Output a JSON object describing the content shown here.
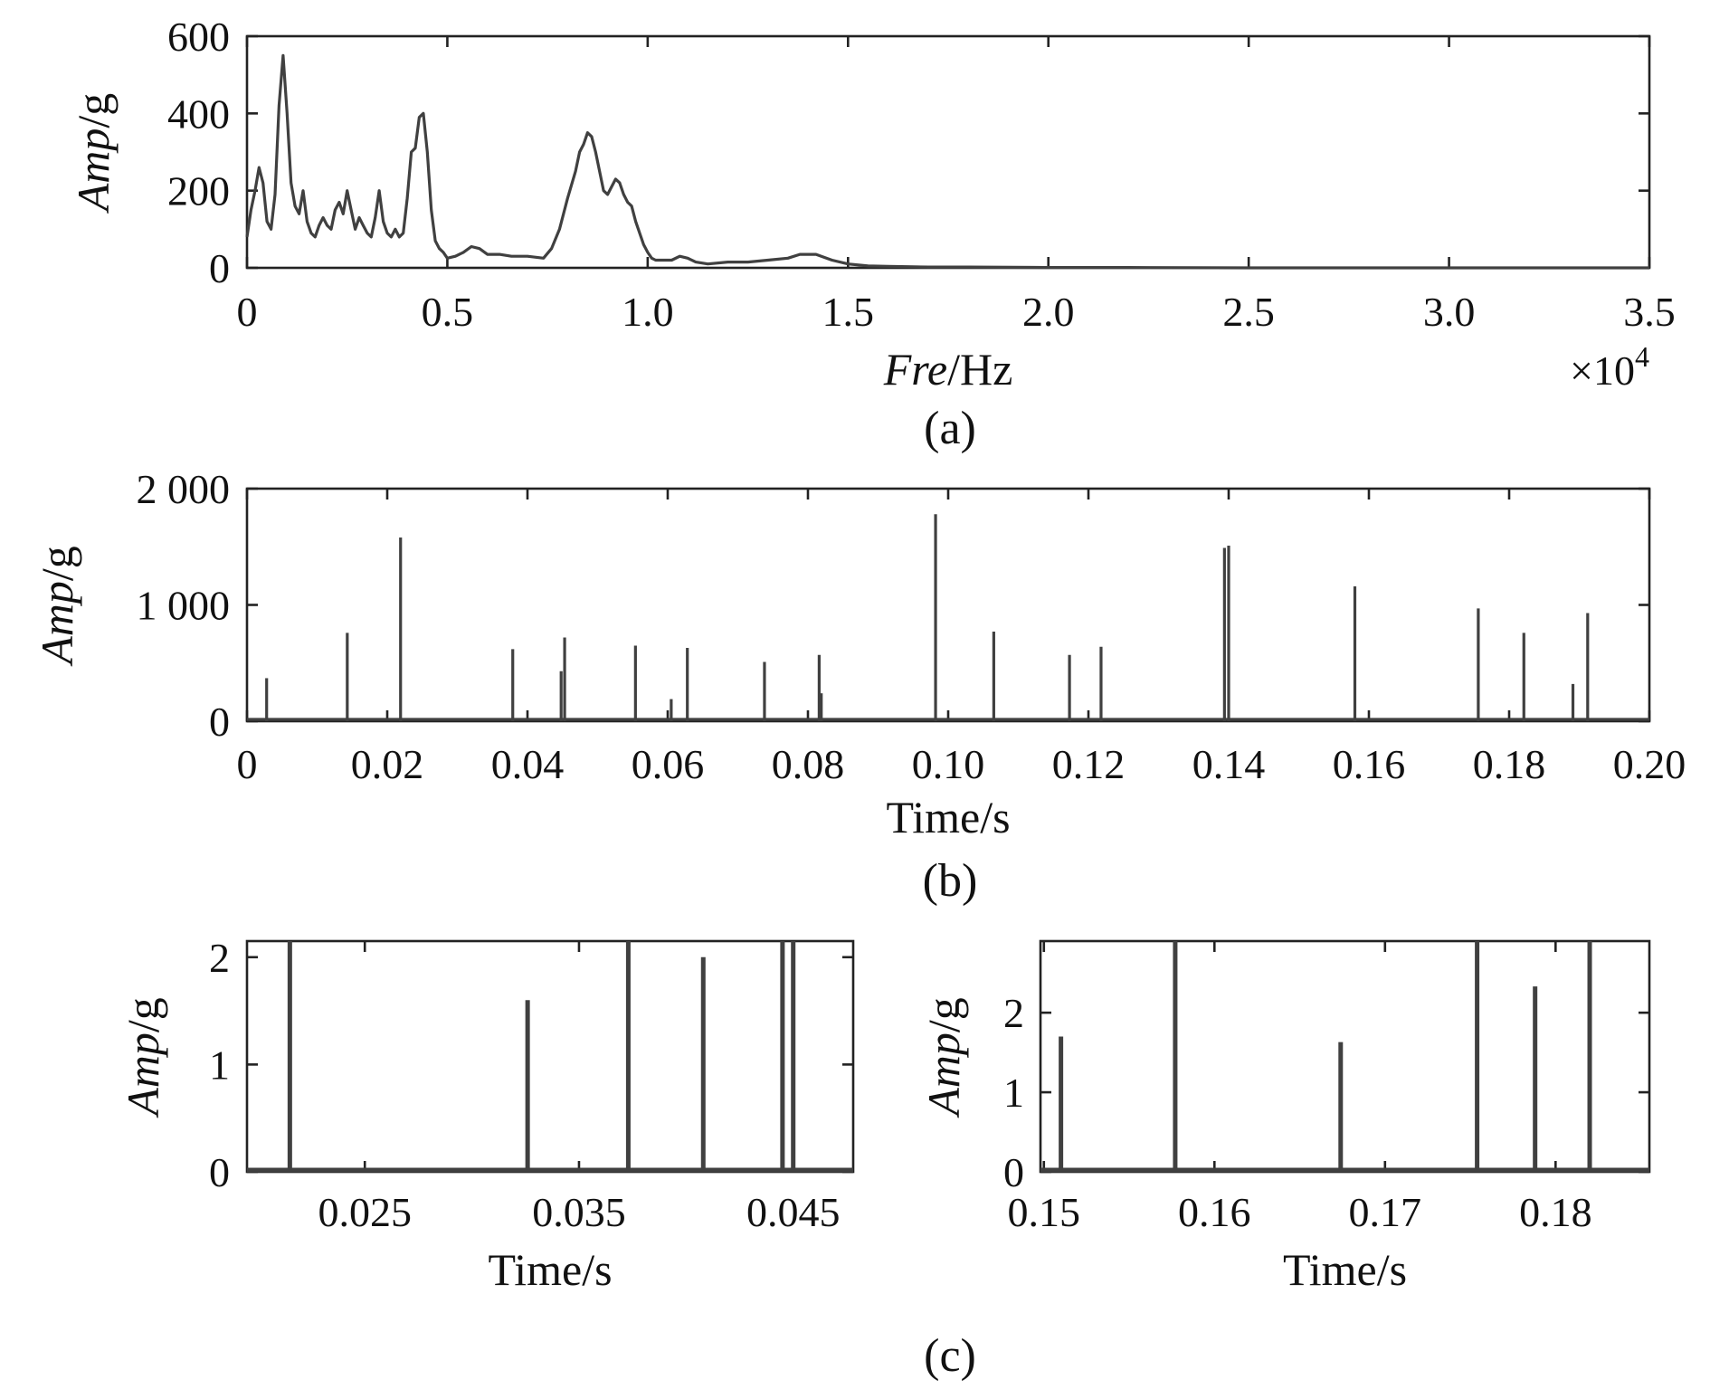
{
  "chart_data": [
    {
      "id": "a",
      "type": "line",
      "caption": "(a)",
      "xlabel_italic": "Fre",
      "xlabel_rest": "/Hz",
      "ylabel_italic": "Amp",
      "ylabel_rest": "/g",
      "xlim": [
        0,
        35000
      ],
      "ylim": [
        0,
        600
      ],
      "x_tick_values": [
        0,
        5000,
        10000,
        15000,
        20000,
        25000,
        30000,
        35000
      ],
      "x_tick_labels": [
        "0",
        "0.5",
        "1.0",
        "1.5",
        "2.0",
        "2.5",
        "3.0",
        "3.5"
      ],
      "x_multiplier": {
        "base": "×10",
        "exponent": "4"
      },
      "y_tick_values": [
        0,
        200,
        400,
        600
      ],
      "y_tick_labels": [
        "0",
        "200",
        "400",
        "600"
      ],
      "x": [
        0,
        100,
        200,
        300,
        400,
        500,
        600,
        700,
        800,
        900,
        1000,
        1100,
        1200,
        1300,
        1400,
        1500,
        1600,
        1700,
        1800,
        1900,
        2000,
        2100,
        2200,
        2300,
        2400,
        2500,
        2600,
        2700,
        2800,
        2900,
        3000,
        3100,
        3200,
        3300,
        3400,
        3500,
        3600,
        3700,
        3800,
        3900,
        4000,
        4100,
        4200,
        4300,
        4400,
        4500,
        4600,
        4700,
        4800,
        4900,
        5000,
        5200,
        5400,
        5600,
        5800,
        6000,
        6300,
        6600,
        7000,
        7400,
        7600,
        7800,
        8000,
        8200,
        8300,
        8400,
        8500,
        8600,
        8700,
        8800,
        8900,
        9000,
        9100,
        9200,
        9300,
        9400,
        9500,
        9600,
        9700,
        9800,
        9900,
        10000,
        10100,
        10200,
        10400,
        10600,
        10800,
        11000,
        11200,
        11500,
        12000,
        12500,
        13000,
        13500,
        13800,
        14200,
        14600,
        15000,
        15500,
        16000,
        16500,
        17000,
        18000,
        20000,
        22000,
        25000,
        28000,
        30000,
        32000,
        35000
      ],
      "y": [
        80,
        150,
        200,
        260,
        220,
        120,
        100,
        190,
        420,
        550,
        400,
        220,
        160,
        140,
        200,
        120,
        90,
        80,
        110,
        130,
        110,
        100,
        150,
        170,
        140,
        200,
        150,
        100,
        130,
        110,
        90,
        80,
        130,
        200,
        120,
        90,
        80,
        100,
        80,
        90,
        180,
        300,
        310,
        390,
        400,
        300,
        150,
        70,
        50,
        40,
        25,
        30,
        40,
        55,
        50,
        35,
        35,
        30,
        30,
        25,
        50,
        100,
        180,
        250,
        300,
        320,
        350,
        340,
        300,
        250,
        200,
        190,
        210,
        230,
        220,
        190,
        170,
        160,
        120,
        90,
        60,
        40,
        25,
        20,
        20,
        20,
        30,
        25,
        15,
        10,
        15,
        15,
        20,
        25,
        35,
        35,
        20,
        10,
        5,
        4,
        3,
        2,
        2,
        1,
        1,
        0,
        0,
        0,
        0,
        0
      ]
    },
    {
      "id": "b",
      "type": "line",
      "caption": "(b)",
      "xlabel": "Time/s",
      "ylabel_italic": "Amp",
      "ylabel_rest": "/g",
      "xlim": [
        0,
        0.2
      ],
      "ylim": [
        0,
        2000
      ],
      "x_tick_values": [
        0,
        0.02,
        0.04,
        0.06,
        0.08,
        0.1,
        0.12,
        0.14,
        0.16,
        0.18,
        0.2
      ],
      "x_tick_labels": [
        "0",
        "0.02",
        "0.04",
        "0.06",
        "0.08",
        "0.10",
        "0.12",
        "0.14",
        "0.16",
        "0.18",
        "0.20"
      ],
      "y_tick_values": [
        0,
        1000,
        2000
      ],
      "y_tick_labels": [
        "0",
        "1 000",
        "2 000"
      ],
      "spikes_x": [
        0.0028,
        0.0143,
        0.0219,
        0.0379,
        0.0448,
        0.0453,
        0.0554,
        0.0605,
        0.0628,
        0.0738,
        0.0816,
        0.0819,
        0.0982,
        0.1065,
        0.1173,
        0.1218,
        0.1394,
        0.14,
        0.158,
        0.1756,
        0.1821,
        0.1891,
        0.1912
      ],
      "spikes_y": [
        370,
        760,
        1580,
        620,
        430,
        720,
        650,
        190,
        630,
        510,
        570,
        240,
        1780,
        770,
        570,
        640,
        1490,
        1510,
        1160,
        970,
        760,
        320,
        930
      ]
    },
    {
      "id": "c-left",
      "type": "line",
      "caption": "(c)",
      "xlabel": "Time/s",
      "ylabel_italic": "Amp",
      "ylabel_rest": "/g",
      "xlim": [
        0.0195,
        0.0478
      ],
      "ylim": [
        0,
        2.15
      ],
      "x_tick_values": [
        0.025,
        0.035,
        0.045
      ],
      "x_tick_labels": [
        "0.025",
        "0.035",
        "0.045"
      ],
      "y_tick_values": [
        0,
        1,
        2
      ],
      "y_tick_labels": [
        "0",
        "1",
        "2"
      ],
      "spikes_x": [
        0.0215,
        0.0326,
        0.0373,
        0.0408,
        0.0445,
        0.045
      ],
      "spikes_y": [
        2.15,
        1.6,
        2.15,
        2.0,
        2.15,
        2.15
      ]
    },
    {
      "id": "c-right",
      "type": "line",
      "xlabel": "Time/s",
      "ylabel_italic": "Amp",
      "ylabel_rest": "/g",
      "xlim": [
        0.1498,
        0.1855
      ],
      "ylim": [
        0,
        2.9
      ],
      "x_tick_values": [
        0.15,
        0.16,
        0.17,
        0.18
      ],
      "x_tick_labels": [
        "0.15",
        "0.16",
        "0.17",
        "0.18"
      ],
      "y_tick_values": [
        0,
        1,
        2
      ],
      "y_tick_labels": [
        "0",
        "1",
        "2"
      ],
      "spikes_x": [
        0.151,
        0.1577,
        0.1674,
        0.1754,
        0.1788,
        0.182
      ],
      "spikes_y": [
        1.7,
        2.9,
        1.63,
        2.9,
        2.33,
        2.9
      ]
    }
  ]
}
